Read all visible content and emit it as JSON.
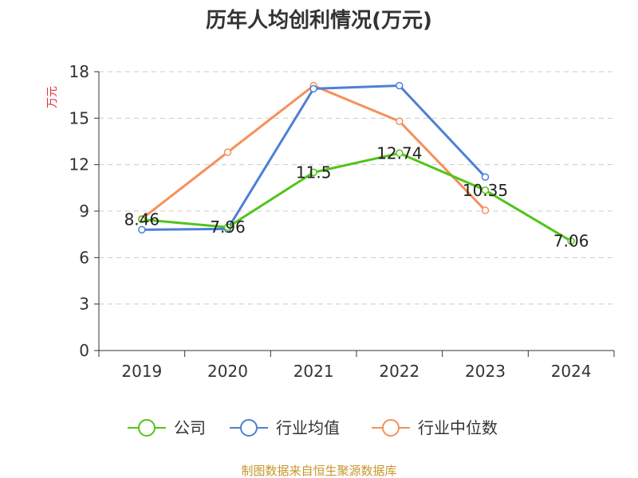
{
  "chart_data": {
    "type": "line",
    "title": "历年人均创利情况(万元)",
    "ylabel": "万元",
    "xlabel": "",
    "categories": [
      "2019",
      "2020",
      "2021",
      "2022",
      "2023",
      "2024"
    ],
    "ylim": [
      0,
      18
    ],
    "yticks": [
      0,
      3,
      6,
      9,
      12,
      15,
      18
    ],
    "grid": true,
    "legend_position": "bottom",
    "series": [
      {
        "name": "公司",
        "color": "#52c41a",
        "values": [
          8.46,
          7.96,
          11.5,
          12.74,
          10.35,
          7.06
        ],
        "labels": [
          "8.46",
          "7.96",
          "11.5",
          "12.74",
          "10.35",
          "7.06"
        ]
      },
      {
        "name": "行业均值",
        "color": "#4e7fd8",
        "values": [
          7.8,
          7.85,
          16.9,
          17.1,
          11.2,
          null
        ]
      },
      {
        "name": "行业中位数",
        "color": "#f5905a",
        "values": [
          8.5,
          12.8,
          17.1,
          14.8,
          9.05,
          null
        ]
      }
    ],
    "source": "制图数据来自恒生聚源数据库"
  }
}
